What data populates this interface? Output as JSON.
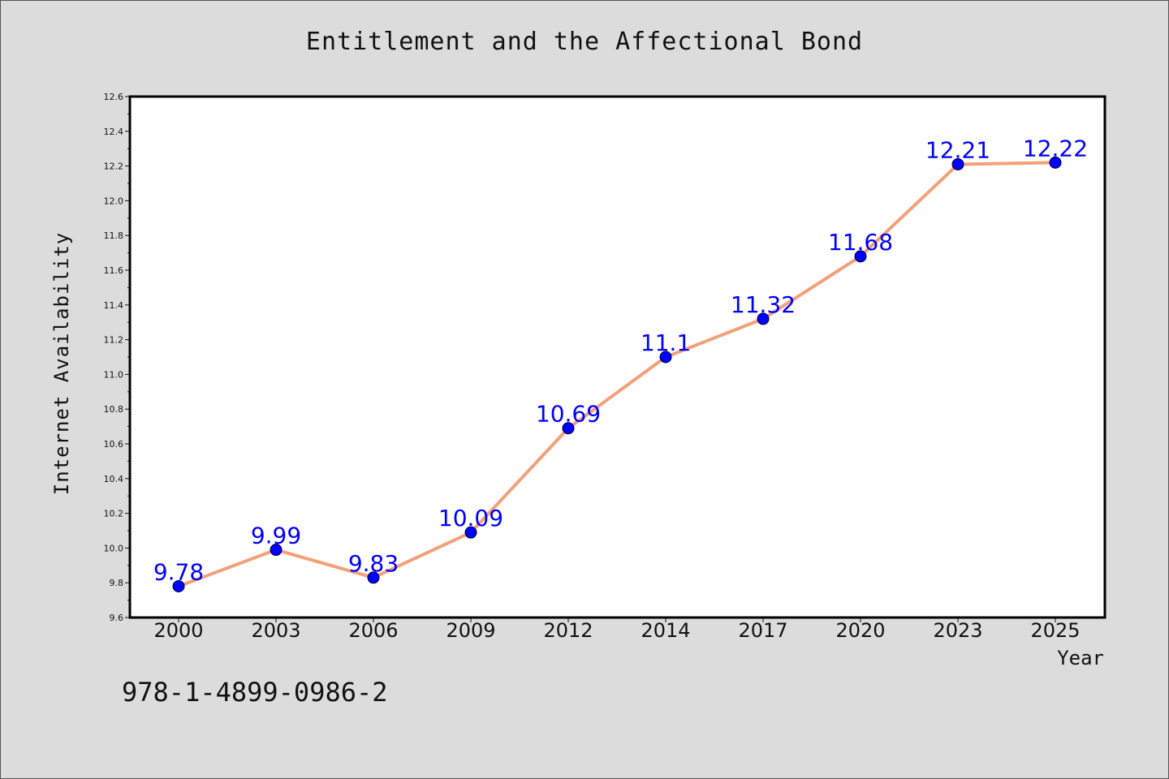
{
  "chart_data": {
    "type": "line",
    "title": "Entitlement and the Affectional Bond",
    "xlabel": "Year",
    "ylabel": "Internet Availability",
    "categories": [
      "2000",
      "2003",
      "2006",
      "2009",
      "2012",
      "2014",
      "2017",
      "2020",
      "2023",
      "2025"
    ],
    "values": [
      9.78,
      9.99,
      9.83,
      10.09,
      10.69,
      11.1,
      11.32,
      11.68,
      12.21,
      12.22
    ],
    "data_labels": [
      "9.78",
      "9.99",
      "9.83",
      "10.09",
      "10.69",
      "11.1",
      "11.32",
      "11.68",
      "12.21",
      "12.22"
    ],
    "ylim": [
      9.6,
      12.6
    ],
    "yticks": [
      "9.6",
      "9.8",
      "10.0",
      "10.2",
      "10.4",
      "10.6",
      "10.8",
      "11.0",
      "11.2",
      "11.4",
      "11.6",
      "11.8",
      "12.0",
      "12.2",
      "12.4",
      "12.6"
    ],
    "grid": false,
    "line_color": "#f4a07a",
    "marker_color": "#0000ff",
    "label_color": "#0000ff"
  },
  "footer": {
    "isbn": "978-1-4899-0986-2"
  }
}
